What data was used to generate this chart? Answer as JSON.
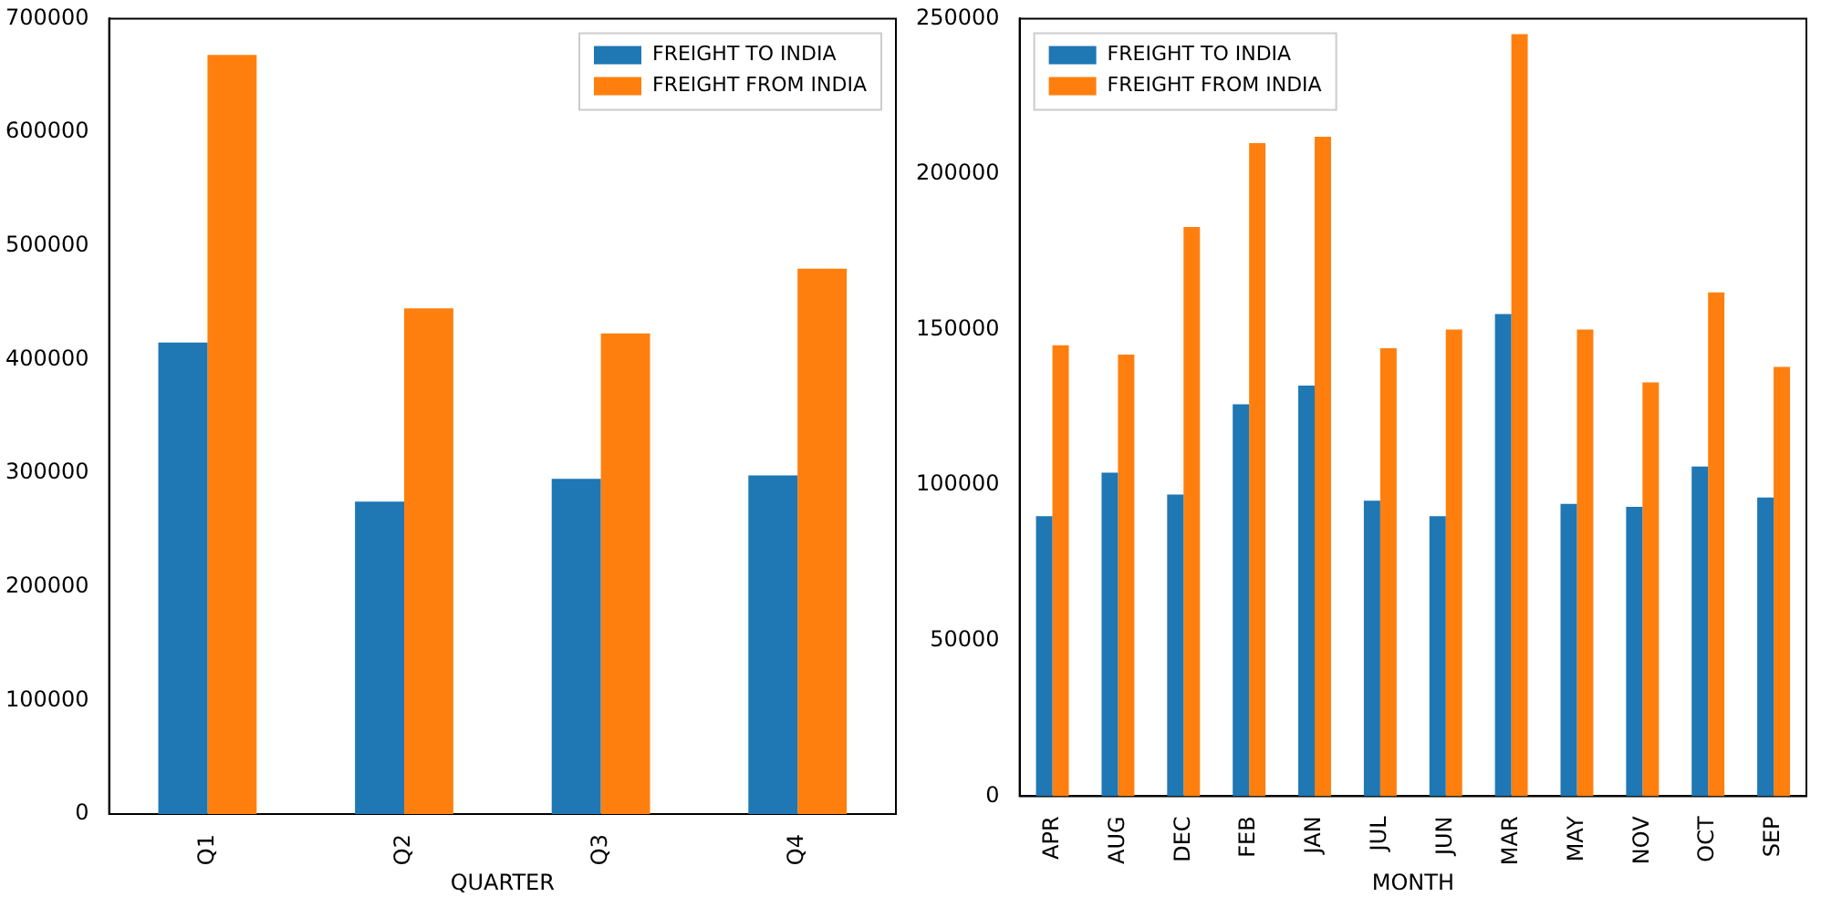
{
  "chart_data": [
    {
      "type": "bar",
      "xlabel": "QUARTER",
      "categories": [
        "Q1",
        "Q2",
        "Q3",
        "Q4"
      ],
      "series": [
        {
          "name": "FREIGHT TO INDIA",
          "color": "#1f77b4",
          "values": [
            415000,
            275000,
            295000,
            298000
          ]
        },
        {
          "name": "FREIGHT FROM INDIA",
          "color": "#ff7f0e",
          "values": [
            668000,
            445000,
            423000,
            480000
          ]
        }
      ],
      "ylim": [
        0,
        700000
      ],
      "yticks": [
        0,
        100000,
        200000,
        300000,
        400000,
        500000,
        600000,
        700000
      ],
      "grid": false,
      "legend": "top right"
    },
    {
      "type": "bar",
      "xlabel": "MONTH",
      "categories": [
        "APR",
        "AUG",
        "DEC",
        "FEB",
        "JAN",
        "JUL",
        "JUN",
        "MAR",
        "MAY",
        "NOV",
        "OCT",
        "SEP"
      ],
      "series": [
        {
          "name": "FREIGHT TO INDIA",
          "color": "#1f77b4",
          "values": [
            90000,
            104000,
            97000,
            126000,
            132000,
            95000,
            90000,
            155000,
            94000,
            93000,
            106000,
            96000
          ]
        },
        {
          "name": "FREIGHT FROM INDIA",
          "color": "#ff7f0e",
          "values": [
            145000,
            142000,
            183000,
            210000,
            212000,
            144000,
            150000,
            245000,
            150000,
            133000,
            162000,
            138000
          ]
        }
      ],
      "ylim": [
        0,
        250000
      ],
      "yticks": [
        0,
        50000,
        100000,
        150000,
        200000,
        250000
      ],
      "grid": false,
      "legend": "top left"
    }
  ]
}
